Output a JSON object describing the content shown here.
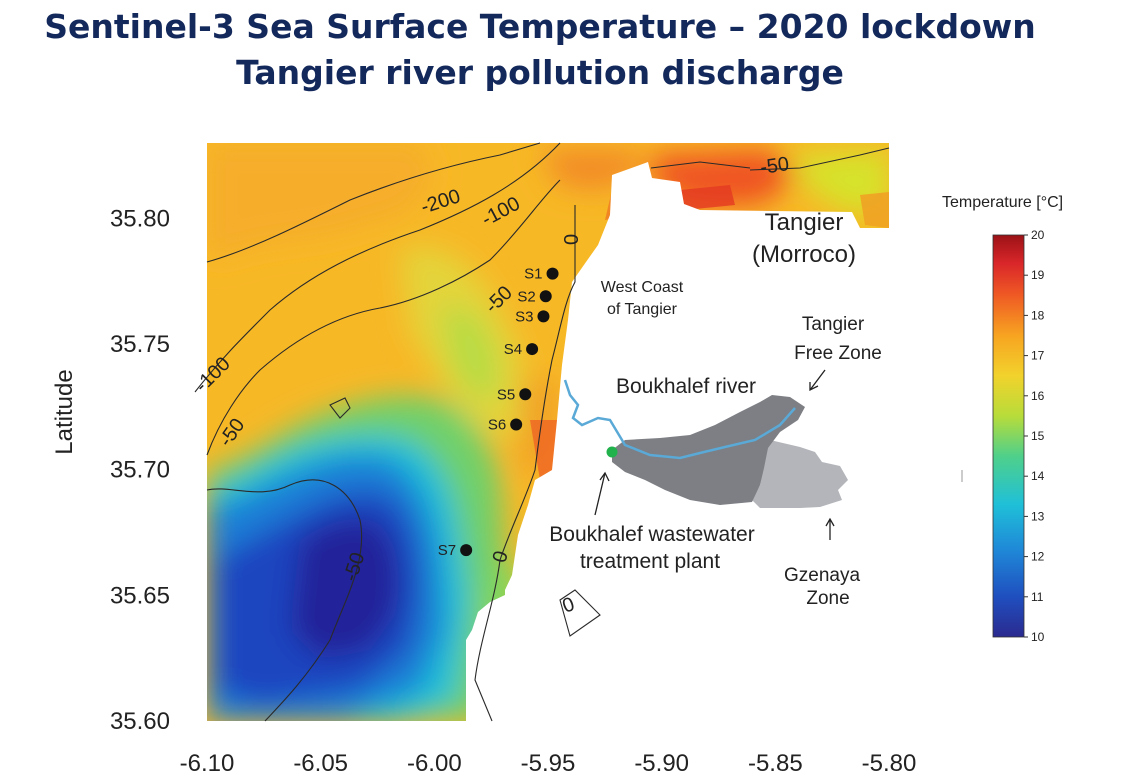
{
  "title": {
    "line1": "Sentinel-3 Sea Surface Temperature – 2020 lockdown",
    "line2": "Tangier river pollution discharge"
  },
  "axes": {
    "ylabel": "Latitude",
    "yticks": [
      "35.80",
      "35.75",
      "35.70",
      "35.65",
      "35.60"
    ],
    "xticks": [
      "-6.10",
      "-6.05",
      "-6.00",
      "-5.95",
      "-5.90",
      "-5.85",
      "-5.80"
    ],
    "xlim": [
      -6.1,
      -5.8
    ],
    "ylim": [
      35.6,
      35.83
    ]
  },
  "contours": {
    "labels": [
      "-200",
      "-100",
      "-50",
      "0",
      "-50",
      "-100",
      "-50",
      "-50",
      "0",
      "0"
    ]
  },
  "stations": [
    {
      "name": "S1",
      "lon": -5.948,
      "lat": 35.778
    },
    {
      "name": "S2",
      "lon": -5.951,
      "lat": 35.769
    },
    {
      "name": "S3",
      "lon": -5.952,
      "lat": 35.761
    },
    {
      "name": "S4",
      "lon": -5.957,
      "lat": 35.748
    },
    {
      "name": "S5",
      "lon": -5.96,
      "lat": 35.73
    },
    {
      "name": "S6",
      "lon": -5.964,
      "lat": 35.718
    },
    {
      "name": "S7",
      "lon": -5.986,
      "lat": 35.668
    }
  ],
  "places": {
    "tangier_line1": "Tangier",
    "tangier_line2": "(Morroco)",
    "west_coast_line1": "West Coast",
    "west_coast_line2": "of Tangier",
    "free_zone_line1": "Tangier",
    "free_zone_line2": "Free Zone",
    "river": "Boukhalef river",
    "plant_line1": "Boukhalef wastewater",
    "plant_line2": "treatment plant",
    "gzenaya_line1": "Gzenaya",
    "gzenaya_line2": "Zone"
  },
  "colorbar": {
    "title": "Temperature [°C]",
    "ticks": [
      "20",
      "19",
      "18",
      "17",
      "16",
      "15",
      "14",
      "13",
      "12",
      "11",
      "10"
    ],
    "min": 10,
    "max": 20
  },
  "colors": {
    "title": "#13285b",
    "land": "#ffffff",
    "river": "#5aa9d6",
    "free_zone_area": "#7d7f84",
    "gzenaya_area": "#b3b5ba",
    "plant_marker": "#22b24c"
  }
}
